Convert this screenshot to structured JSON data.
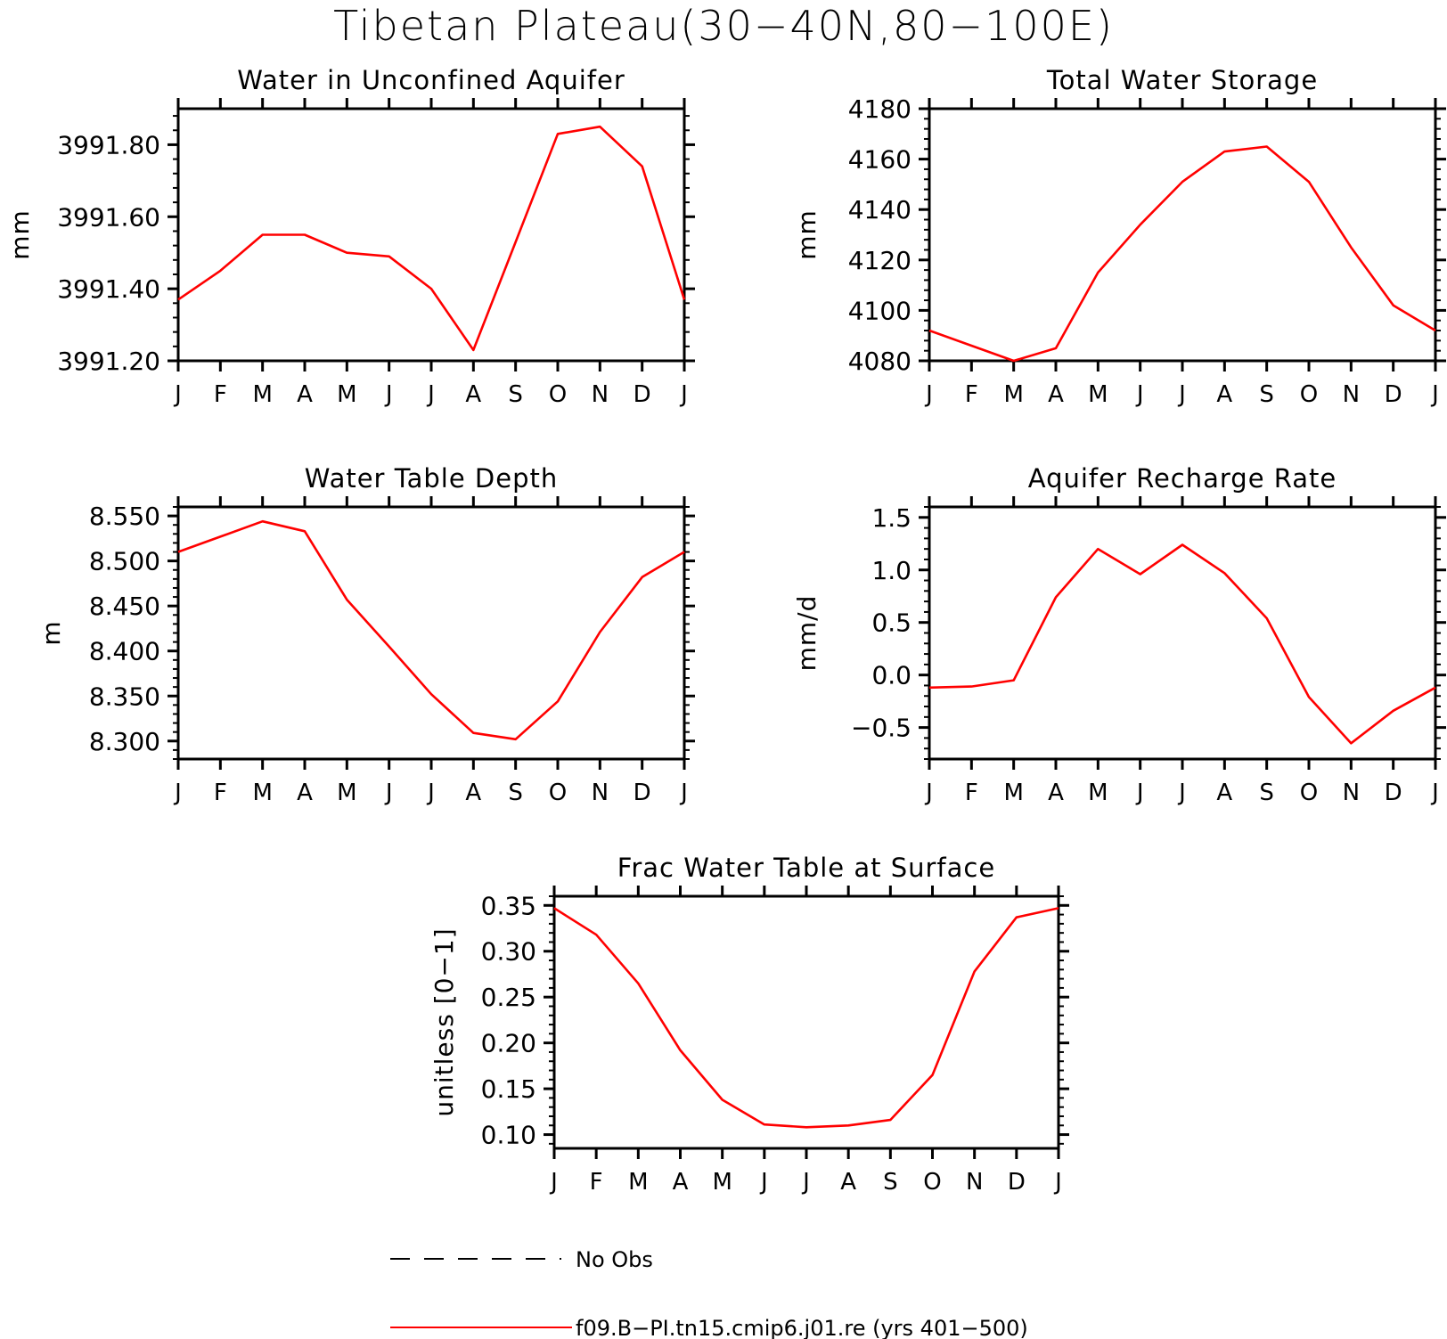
{
  "figure_title": "Tibetan Plateau(30−40N,80−100E)",
  "legend": [
    {
      "label": "No Obs",
      "style": "dashed",
      "color": "#000000"
    },
    {
      "label": "f09.B−PI.tn15.cmip6.j01.re (yrs 401−500)",
      "style": "solid",
      "color": "#ff0000"
    }
  ],
  "chart_data": [
    {
      "type": "line",
      "title": "Water in Unconfined Aquifer",
      "ylabel": "mm",
      "x": [
        "J",
        "F",
        "M",
        "A",
        "M",
        "J",
        "J",
        "A",
        "S",
        "O",
        "N",
        "D",
        "J"
      ],
      "ylim": [
        3991.2,
        3991.9
      ],
      "yticks": [
        3991.2,
        3991.4,
        3991.6,
        3991.8
      ],
      "ytick_labels": [
        "3991.20",
        "3991.40",
        "3991.60",
        "3991.80"
      ],
      "series": [
        {
          "color": "#ff0000",
          "values": [
            3991.37,
            3991.45,
            3991.55,
            3991.55,
            3991.5,
            3991.49,
            3991.4,
            3991.23,
            3991.53,
            3991.83,
            3991.85,
            3991.74,
            3991.37
          ]
        }
      ]
    },
    {
      "type": "line",
      "title": "Total Water Storage",
      "ylabel": "mm",
      "x": [
        "J",
        "F",
        "M",
        "A",
        "M",
        "J",
        "J",
        "A",
        "S",
        "O",
        "N",
        "D",
        "J"
      ],
      "ylim": [
        4080,
        4180
      ],
      "yticks": [
        4080,
        4100,
        4120,
        4140,
        4160,
        4180
      ],
      "ytick_labels": [
        "4080",
        "4100",
        "4120",
        "4140",
        "4160",
        "4180"
      ],
      "series": [
        {
          "color": "#ff0000",
          "values": [
            4092,
            4086,
            4080,
            4085,
            4115,
            4134,
            4151,
            4163,
            4165,
            4151,
            4125,
            4102,
            4092
          ]
        }
      ]
    },
    {
      "type": "line",
      "title": "Water Table Depth",
      "ylabel": "m",
      "x": [
        "J",
        "F",
        "M",
        "A",
        "M",
        "J",
        "J",
        "A",
        "S",
        "O",
        "N",
        "D",
        "J"
      ],
      "ylim": [
        8.28,
        8.56
      ],
      "yticks": [
        8.3,
        8.35,
        8.4,
        8.45,
        8.5,
        8.55
      ],
      "ytick_labels": [
        "8.300",
        "8.350",
        "8.400",
        "8.450",
        "8.500",
        "8.550"
      ],
      "series": [
        {
          "color": "#ff0000",
          "values": [
            8.51,
            8.527,
            8.544,
            8.533,
            8.457,
            8.405,
            8.352,
            8.309,
            8.302,
            8.344,
            8.421,
            8.482,
            8.51
          ]
        }
      ]
    },
    {
      "type": "line",
      "title": "Aquifer Recharge Rate",
      "ylabel": "mm/d",
      "x": [
        "J",
        "F",
        "M",
        "A",
        "M",
        "J",
        "J",
        "A",
        "S",
        "O",
        "N",
        "D",
        "J"
      ],
      "ylim": [
        -0.8,
        1.6
      ],
      "yticks": [
        -0.5,
        0.0,
        0.5,
        1.0,
        1.5
      ],
      "ytick_labels": [
        "−0.5",
        "0.0",
        "0.5",
        "1.0",
        "1.5"
      ],
      "series": [
        {
          "color": "#ff0000",
          "values": [
            -0.12,
            -0.11,
            -0.05,
            0.74,
            1.2,
            0.96,
            1.24,
            0.97,
            0.54,
            -0.21,
            -0.65,
            -0.34,
            -0.12
          ]
        }
      ]
    },
    {
      "type": "line",
      "title": "Frac Water Table at Surface",
      "ylabel": "unitless [0−1]",
      "x": [
        "J",
        "F",
        "M",
        "A",
        "M",
        "J",
        "J",
        "A",
        "S",
        "O",
        "N",
        "D",
        "J"
      ],
      "ylim": [
        0.085,
        0.36
      ],
      "yticks": [
        0.1,
        0.15,
        0.2,
        0.25,
        0.3,
        0.35
      ],
      "ytick_labels": [
        "0.10",
        "0.15",
        "0.20",
        "0.25",
        "0.30",
        "0.35"
      ],
      "series": [
        {
          "color": "#ff0000",
          "values": [
            0.347,
            0.318,
            0.265,
            0.192,
            0.138,
            0.111,
            0.108,
            0.11,
            0.116,
            0.165,
            0.278,
            0.337,
            0.347
          ]
        }
      ]
    }
  ]
}
